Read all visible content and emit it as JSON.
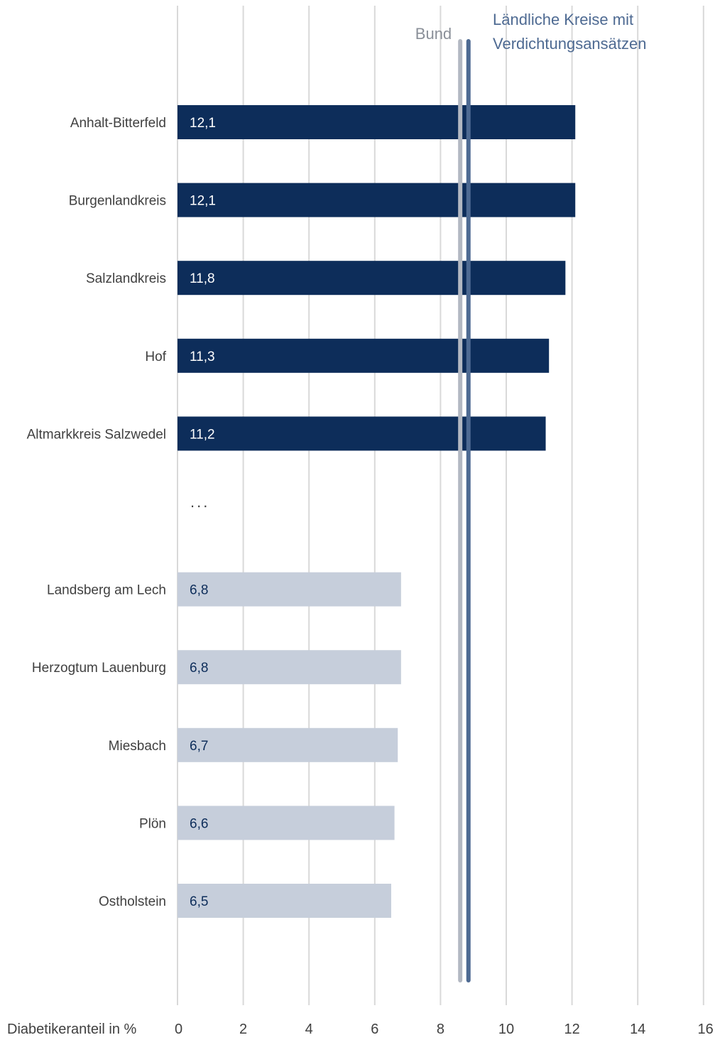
{
  "chart_data": {
    "type": "bar",
    "orientation": "horizontal",
    "xlabel": "Diabetikeranteil in %",
    "xlim": [
      0,
      16
    ],
    "x_ticks": [
      0,
      2,
      4,
      6,
      8,
      10,
      12,
      14,
      16
    ],
    "grid": "vertical",
    "ellipsis_label": "...",
    "categories": [
      "Anhalt-Bitterfeld",
      "Burgenlandkreis",
      "Salzlandkreis",
      "Hof",
      "Altmarkkreis Salzwedel",
      "...",
      "Landsberg am Lech",
      "Herzogtum Lauenburg",
      "Miesbach",
      "Plön",
      "Ostholstein"
    ],
    "values": [
      12.1,
      12.1,
      11.8,
      11.3,
      11.2,
      null,
      6.8,
      6.8,
      6.7,
      6.6,
      6.5
    ],
    "value_labels": [
      "12,1",
      "12,1",
      "11,8",
      "11,3",
      "11,2",
      "",
      "6,8",
      "6,8",
      "6,7",
      "6,6",
      "6,5"
    ],
    "groups": [
      "top",
      "top",
      "top",
      "top",
      "top",
      "gap",
      "bottom",
      "bottom",
      "bottom",
      "bottom",
      "bottom"
    ],
    "reference_lines": [
      {
        "label": "Bund",
        "value": 8.6,
        "color": "#b3b8c2"
      },
      {
        "label": "Ländliche Kreise mit Verdichtungsansätzen",
        "label_lines": [
          "Ländliche Kreise mit",
          "Verdichtungsansätzen"
        ],
        "value": 8.85,
        "color": "#4e6a92"
      }
    ],
    "colors": {
      "top": "#0d2d5a",
      "bottom": "#c6cedb",
      "top_label": "#ffffff",
      "bottom_label": "#0d2d5a",
      "grid": "#d9d9d9",
      "axis_text": "#404040",
      "category_text": "#404040",
      "bund_text": "#8a8f98",
      "landlich_text": "#4e6a92"
    }
  }
}
